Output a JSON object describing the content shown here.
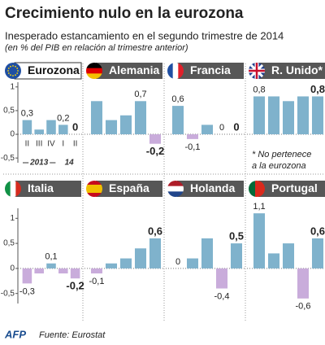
{
  "title": "Crecimiento nulo en la eurozona",
  "subtitle": "Inesperado estancamiento en el segundo trimestre de 2014",
  "unit_note": "(en % del PIB en relación al trimestre anterior)",
  "note": [
    "* No pertenece",
    "a la eurozona"
  ],
  "source": "Fuente: Eurostat",
  "agency": "AFP",
  "colors": {
    "positive": "#7fb2cc",
    "negative": "#c9acdb"
  },
  "chart_data": [
    {
      "type": "bar",
      "title": "Eurozona",
      "categories": [
        "II",
        "III",
        "IV",
        "I",
        "II"
      ],
      "year_labels": [
        "2013",
        "14"
      ],
      "values": [
        0.3,
        0.1,
        0.3,
        0.2,
        0
      ],
      "value_labels": [
        "0,3",
        null,
        null,
        "0,2",
        "0"
      ],
      "ylim": [
        -0.6,
        1.1
      ],
      "yticks": [
        {
          "value": -0.5,
          "label": "-0,5"
        },
        0,
        {
          "value": 0.5,
          "label": "0,5"
        },
        1
      ]
    },
    {
      "type": "bar",
      "title": "Alemania",
      "categories": [
        null,
        null,
        null,
        null,
        null
      ],
      "values": [
        0.7,
        0.3,
        0.4,
        0.7,
        -0.2
      ],
      "value_labels": [
        null,
        null,
        null,
        "0,7",
        "-0,2"
      ],
      "ylim": [
        -0.6,
        1.1
      ]
    },
    {
      "type": "bar",
      "title": "Francia",
      "categories": [
        null,
        null,
        null,
        null,
        null
      ],
      "values": [
        0.6,
        -0.1,
        0.2,
        0,
        0
      ],
      "value_labels": [
        "0,6",
        "-0,1",
        null,
        "0",
        "0"
      ],
      "ylim": [
        -0.6,
        1.1
      ]
    },
    {
      "type": "bar",
      "title": "R. Unido*",
      "categories": [
        null,
        null,
        null,
        null,
        null
      ],
      "values": [
        0.8,
        0.8,
        0.7,
        0.8,
        0.8
      ],
      "value_labels": [
        "0,8",
        null,
        null,
        null,
        "0,8"
      ],
      "ylim": [
        -0.6,
        1.1
      ]
    },
    {
      "type": "bar",
      "title": "Italia",
      "categories": [
        null,
        null,
        null,
        null,
        null
      ],
      "values": [
        -0.3,
        -0.1,
        0.1,
        -0.1,
        -0.2
      ],
      "value_labels": [
        "-0,3",
        null,
        "0,1",
        null,
        "-0,2"
      ],
      "ylim": [
        -0.7,
        1.2
      ],
      "yticks": [
        {
          "value": -0.5,
          "label": "-0,5"
        },
        0,
        {
          "value": 0.5,
          "label": "0,5"
        },
        1
      ]
    },
    {
      "type": "bar",
      "title": "España",
      "categories": [
        null,
        null,
        null,
        null,
        null
      ],
      "values": [
        -0.1,
        0.1,
        0.2,
        0.4,
        0.6
      ],
      "value_labels": [
        "-0,1",
        null,
        null,
        null,
        "0,6"
      ],
      "ylim": [
        -0.7,
        1.2
      ]
    },
    {
      "type": "bar",
      "title": "Holanda",
      "categories": [
        null,
        null,
        null,
        null,
        null
      ],
      "values": [
        0,
        0.2,
        0.6,
        -0.4,
        0.5
      ],
      "value_labels": [
        "0",
        null,
        null,
        "-0,4",
        "0,5"
      ],
      "ylim": [
        -0.7,
        1.2
      ]
    },
    {
      "type": "bar",
      "title": "Portugal",
      "categories": [
        null,
        null,
        null,
        null,
        null
      ],
      "values": [
        1.1,
        0.3,
        0.5,
        -0.6,
        0.6
      ],
      "value_labels": [
        "1,1",
        null,
        null,
        "-0,6",
        "0,6"
      ],
      "ylim": [
        -0.7,
        1.2
      ]
    }
  ]
}
